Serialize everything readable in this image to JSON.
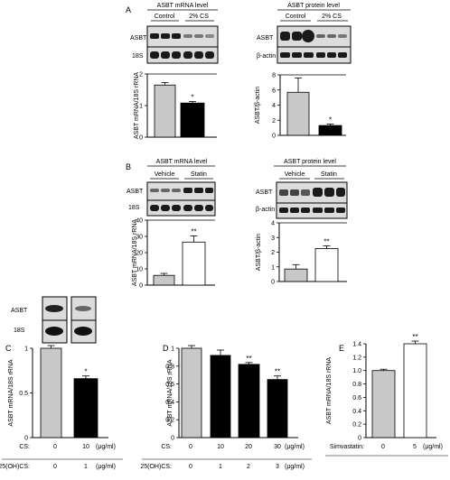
{
  "panels": {
    "A": {
      "letter": "A"
    },
    "B": {
      "letter": "B"
    },
    "C": {
      "letter": "C"
    },
    "D": {
      "letter": "D"
    },
    "E": {
      "letter": "E"
    }
  },
  "blots": {
    "a_mrna": {
      "title": "ASBT mRNA level",
      "groups": [
        "Control",
        "2% CS"
      ],
      "rows": [
        "ASBT",
        "18S"
      ]
    },
    "a_protein": {
      "title": "ASBT protein level",
      "groups": [
        "Control",
        "2% CS"
      ],
      "rows": [
        "ASBT",
        "β-actin"
      ]
    },
    "b_mrna": {
      "title": "ASBT mRNA level",
      "groups": [
        "Vehicle",
        "Statin"
      ],
      "rows": [
        "ASBT",
        "18S"
      ]
    },
    "b_protein": {
      "title": "ASBT protein level",
      "groups": [
        "Vehicle",
        "Statin"
      ],
      "rows": [
        "ASBT",
        "β-actin"
      ]
    },
    "c_small": {
      "rows": [
        "ASBT",
        "18S"
      ]
    }
  },
  "colors": {
    "gray_bar": "#c8c8c8",
    "black_bar": "#000000",
    "white_bar": "#ffffff",
    "blot_bg": "#dcdcdc",
    "band_dark": "#1a1a1a"
  },
  "chart_data": [
    {
      "id": "A-left",
      "type": "bar",
      "ylabel": "ASBT mRNA/18S rRNA",
      "ylim": [
        0,
        2
      ],
      "yticks": [
        0,
        1,
        2
      ],
      "values": [
        1.65,
        1.08
      ],
      "errors": [
        0.08,
        0.05
      ],
      "fills": [
        "gray",
        "black"
      ],
      "sig": [
        "",
        "*"
      ]
    },
    {
      "id": "A-right",
      "type": "bar",
      "ylabel": "ASBT/β-actin",
      "ylim": [
        0,
        8
      ],
      "yticks": [
        0,
        2,
        4,
        6,
        8
      ],
      "values": [
        5.7,
        1.3
      ],
      "errors": [
        1.9,
        0.2
      ],
      "fills": [
        "gray",
        "black"
      ],
      "sig": [
        "",
        "*"
      ]
    },
    {
      "id": "B-left",
      "type": "bar",
      "ylabel": "ASBT mRNA/18S rRNA",
      "ylim": [
        0,
        40
      ],
      "yticks": [
        0,
        10,
        20,
        30,
        40
      ],
      "values": [
        6,
        26.5
      ],
      "errors": [
        1.2,
        3.8
      ],
      "fills": [
        "gray",
        "white"
      ],
      "sig": [
        "",
        "**"
      ]
    },
    {
      "id": "B-right",
      "type": "bar",
      "ylabel": "ASBT/β-actin",
      "ylim": [
        0,
        4
      ],
      "yticks": [
        0,
        1,
        2,
        3,
        4
      ],
      "values": [
        0.85,
        2.25
      ],
      "errors": [
        0.3,
        0.18
      ],
      "fills": [
        "gray",
        "white"
      ],
      "sig": [
        "",
        "**"
      ]
    },
    {
      "id": "C",
      "type": "bar",
      "ylabel": "ASBT mRNA/18S rRNA",
      "ylim": [
        0,
        1
      ],
      "yticks": [
        0,
        0.5,
        1
      ],
      "yticklabels": [
        "0",
        "0.5",
        "1"
      ],
      "values": [
        1.0,
        0.66
      ],
      "errors": [
        0.03,
        0.03
      ],
      "fills": [
        "gray",
        "black"
      ],
      "sig": [
        "",
        "*"
      ],
      "xrows": [
        {
          "label": "CS:",
          "values": [
            "0",
            "10"
          ],
          "unit": "(μg/ml)"
        },
        {
          "label": "25(OH)CS:",
          "values": [
            "0",
            "1"
          ],
          "unit": "(μg/ml)"
        }
      ]
    },
    {
      "id": "D",
      "type": "bar",
      "ylabel": "ASBT mRNA/18S rRNA",
      "ylim": [
        0,
        1
      ],
      "yticks": [
        0,
        0.2,
        0.4,
        0.6,
        0.8,
        1
      ],
      "yticklabels": [
        "0",
        "0.2",
        "0.4",
        "0.6",
        "0.8",
        "1"
      ],
      "values": [
        1.0,
        0.92,
        0.82,
        0.65
      ],
      "errors": [
        0.03,
        0.06,
        0.02,
        0.04
      ],
      "fills": [
        "gray",
        "black",
        "black",
        "black"
      ],
      "sig": [
        "",
        "",
        "**",
        "**"
      ],
      "xrows": [
        {
          "label": "CS:",
          "values": [
            "0",
            "10",
            "20",
            "30"
          ],
          "unit": "(μg/ml)"
        },
        {
          "label": "25(OH)CS:",
          "values": [
            "0",
            "1",
            "2",
            "3"
          ],
          "unit": "(μg/ml)"
        }
      ]
    },
    {
      "id": "E",
      "type": "bar",
      "ylabel": "ASBT mRNA/18S rRNA",
      "ylim": [
        0,
        1.4
      ],
      "yticks": [
        0,
        0.2,
        0.4,
        0.6,
        0.8,
        1,
        1.2,
        1.4
      ],
      "yticklabels": [
        "0",
        "0.2",
        "0.4",
        "0.6",
        "0.8",
        "1.0",
        "1.2",
        "1.4"
      ],
      "values": [
        1.0,
        1.4
      ],
      "errors": [
        0.02,
        0.04
      ],
      "fills": [
        "gray",
        "white"
      ],
      "sig": [
        "",
        "**"
      ],
      "xrows": [
        {
          "label": "Simvastatin:",
          "values": [
            "0",
            "5"
          ],
          "unit": "(μg/ml)"
        }
      ]
    }
  ]
}
